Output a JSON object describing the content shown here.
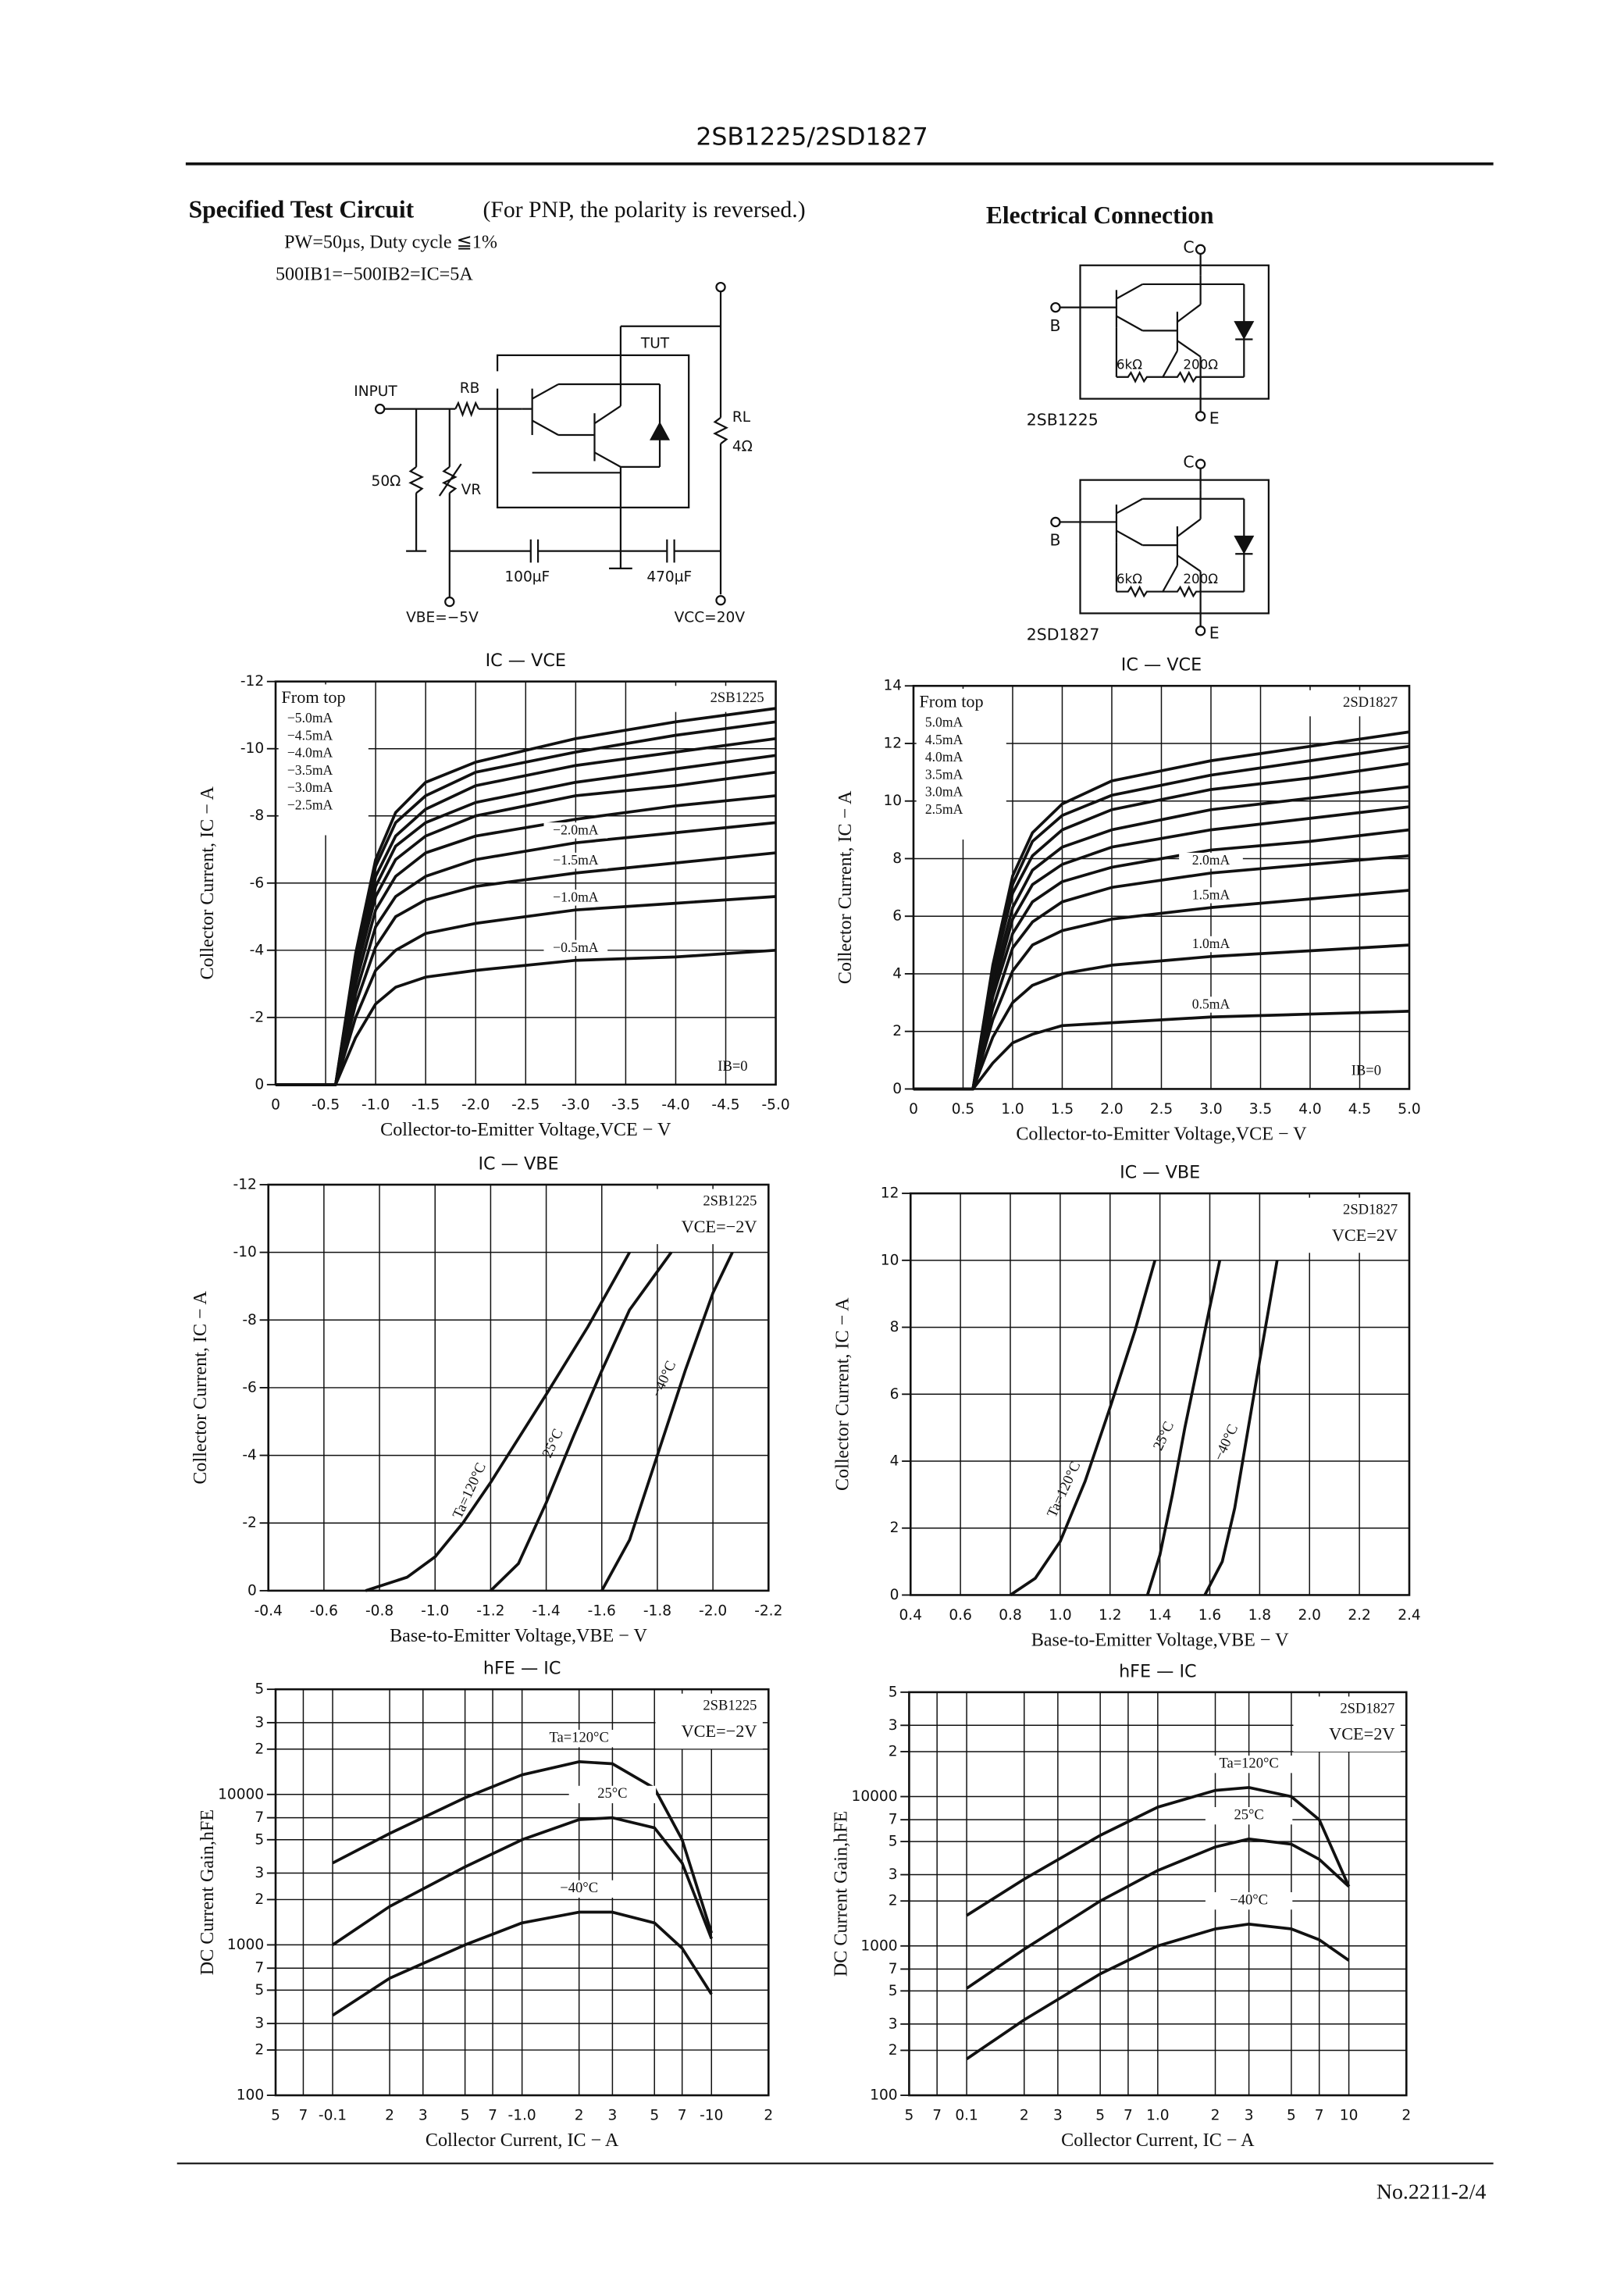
{
  "header": {
    "title": "2SB1225/2SD1827"
  },
  "test_circuit": {
    "title": "Specified Test Circuit",
    "note": "(For PNP, the polarity is reversed.)",
    "conditions": [
      "PW=50µs, Duty cycle ≦1%",
      "500IB1=−500IB2=IC=5A"
    ],
    "labels": {
      "input": "INPUT",
      "rb": "RB",
      "r50": "50Ω",
      "vr": "VR",
      "tut": "TUT",
      "rl": "RL",
      "rl_value": "4Ω",
      "c1": "100µF",
      "c2": "470µF",
      "vbe": "VBE=−5V",
      "vcc": "VCC=20V"
    }
  },
  "electrical_connection": {
    "title": "Electrical Connection",
    "diagrams": [
      {
        "part": "2SB1225",
        "c": "C",
        "b": "B",
        "e": "E",
        "r1": "6kΩ",
        "r2": "200Ω"
      },
      {
        "part": "2SD1827",
        "c": "C",
        "b": "B",
        "e": "E",
        "r1": "6kΩ",
        "r2": "200Ω"
      }
    ]
  },
  "chart_data": [
    {
      "type": "line",
      "title": "IC — VCE",
      "device": "2SB1225",
      "legend_title": "From top",
      "annotations": [
        "IB=0"
      ],
      "xlabel": "Collector-to-Emitter Voltage,VCE − V",
      "ylabel": "Collector Current, IC − A",
      "xlim": [
        0,
        -5
      ],
      "ylim": [
        0,
        -12
      ],
      "xticks": [
        0,
        -0.5,
        {
          "value": -1,
          "label": "-1.0"
        },
        -1.5,
        {
          "value": -2,
          "label": "-2.0"
        },
        -2.5,
        {
          "value": -3,
          "label": "-3.0"
        },
        -3.5,
        {
          "value": -4,
          "label": "-4.0"
        },
        -4.5,
        {
          "value": -5,
          "label": "-5.0"
        }
      ],
      "yticks": [
        0,
        -2,
        -4,
        -6,
        -8,
        -10,
        -12
      ],
      "grid": true,
      "x": [
        0,
        -0.6,
        -0.8,
        -1.0,
        -1.2,
        -1.5,
        -2.0,
        -3.0,
        -4.0,
        -5.0
      ],
      "series": [
        {
          "name": "−5.0mA",
          "color": "#111",
          "values": [
            0,
            0,
            -3.9,
            -6.7,
            -8.1,
            -9.0,
            -9.6,
            -10.3,
            -10.8,
            -11.2
          ]
        },
        {
          "name": "−4.5mA",
          "color": "#111",
          "values": [
            0,
            0,
            -3.8,
            -6.5,
            -7.8,
            -8.6,
            -9.3,
            -9.9,
            -10.4,
            -10.8
          ]
        },
        {
          "name": "−4.0mA",
          "color": "#111",
          "values": [
            0,
            0,
            -3.6,
            -6.2,
            -7.4,
            -8.2,
            -8.9,
            -9.5,
            -9.9,
            -10.3
          ]
        },
        {
          "name": "−3.5mA",
          "color": "#111",
          "values": [
            0,
            0,
            -3.4,
            -5.9,
            -7.1,
            -7.8,
            -8.4,
            -9.0,
            -9.4,
            -9.8
          ]
        },
        {
          "name": "−3.0mA",
          "color": "#111",
          "values": [
            0,
            0,
            -3.3,
            -5.6,
            -6.7,
            -7.4,
            -8.0,
            -8.6,
            -8.9,
            -9.3
          ]
        },
        {
          "name": "−2.5mA",
          "color": "#111",
          "values": [
            0,
            0,
            -3.0,
            -5.2,
            -6.2,
            -6.9,
            -7.4,
            -7.9,
            -8.3,
            -8.6
          ]
        },
        {
          "name": "−2.0mA",
          "color": "#111",
          "values": [
            0,
            0,
            -2.7,
            -4.7,
            -5.6,
            -6.2,
            -6.7,
            -7.2,
            -7.5,
            -7.8
          ]
        },
        {
          "name": "−1.5mA",
          "color": "#111",
          "values": [
            0,
            0,
            -2.4,
            -4.1,
            -5.0,
            -5.5,
            -5.9,
            -6.3,
            -6.6,
            -6.9
          ]
        },
        {
          "name": "−1.0mA",
          "color": "#111",
          "values": [
            0,
            0,
            -2.0,
            -3.4,
            -4.0,
            -4.5,
            -4.8,
            -5.2,
            -5.4,
            -5.6
          ]
        },
        {
          "name": "−0.5mA",
          "color": "#111",
          "values": [
            0,
            0,
            -1.4,
            -2.4,
            -2.9,
            -3.2,
            -3.4,
            -3.7,
            -3.8,
            -4.0
          ]
        }
      ]
    },
    {
      "type": "line",
      "title": "IC — VCE",
      "device": "2SD1827",
      "legend_title": "From top",
      "annotations": [
        "IB=0"
      ],
      "xlabel": "Collector-to-Emitter Voltage,VCE − V",
      "ylabel": "Collector Current, IC − A",
      "xlim": [
        0,
        5
      ],
      "ylim": [
        0,
        14
      ],
      "xticks": [
        0,
        0.5,
        {
          "value": 1,
          "label": "1.0"
        },
        1.5,
        {
          "value": 2,
          "label": "2.0"
        },
        2.5,
        {
          "value": 3,
          "label": "3.0"
        },
        3.5,
        {
          "value": 4,
          "label": "4.0"
        },
        4.5,
        {
          "value": 5,
          "label": "5.0"
        }
      ],
      "yticks": [
        0,
        2,
        4,
        6,
        8,
        10,
        12,
        14
      ],
      "grid": true,
      "x": [
        0,
        0.6,
        0.8,
        1.0,
        1.2,
        1.5,
        2.0,
        3.0,
        4.0,
        5.0
      ],
      "series": [
        {
          "name": "5.0mA",
          "color": "#111",
          "values": [
            0,
            0,
            4.3,
            7.4,
            8.9,
            9.9,
            10.7,
            11.4,
            11.9,
            12.4
          ]
        },
        {
          "name": "4.5mA",
          "color": "#111",
          "values": [
            0,
            0,
            4.2,
            7.1,
            8.6,
            9.5,
            10.2,
            10.9,
            11.4,
            11.9
          ]
        },
        {
          "name": "4.0mA",
          "color": "#111",
          "values": [
            0,
            0,
            4.0,
            6.8,
            8.1,
            9.0,
            9.7,
            10.4,
            10.8,
            11.3
          ]
        },
        {
          "name": "3.5mA",
          "color": "#111",
          "values": [
            0,
            0,
            3.7,
            6.3,
            7.6,
            8.4,
            9.0,
            9.7,
            10.1,
            10.5
          ]
        },
        {
          "name": "3.0mA",
          "color": "#111",
          "values": [
            0,
            0,
            3.4,
            5.9,
            7.1,
            7.8,
            8.4,
            9.0,
            9.4,
            9.8
          ]
        },
        {
          "name": "2.5mA",
          "color": "#111",
          "values": [
            0,
            0,
            3.2,
            5.4,
            6.5,
            7.2,
            7.7,
            8.3,
            8.6,
            9.0
          ]
        },
        {
          "name": "2.0mA",
          "color": "#111",
          "values": [
            0,
            0,
            2.8,
            4.9,
            5.8,
            6.5,
            7.0,
            7.5,
            7.8,
            8.1
          ]
        },
        {
          "name": "1.5mA",
          "color": "#111",
          "values": [
            0,
            0,
            2.4,
            4.1,
            5.0,
            5.5,
            5.9,
            6.3,
            6.6,
            6.9
          ]
        },
        {
          "name": "1.0mA",
          "color": "#111",
          "values": [
            0,
            0,
            1.8,
            3.0,
            3.6,
            4.0,
            4.3,
            4.6,
            4.8,
            5.0
          ]
        },
        {
          "name": "0.5mA",
          "color": "#111",
          "values": [
            0,
            0,
            0.9,
            1.6,
            1.9,
            2.2,
            2.3,
            2.5,
            2.6,
            2.7
          ]
        }
      ]
    },
    {
      "type": "line",
      "title": "IC — VBE",
      "device": "2SB1225",
      "condition": "VCE=−2V",
      "xlabel": "Base-to-Emitter Voltage,VBE − V",
      "ylabel": "Collector Current, IC − A",
      "xlim": [
        -0.4,
        -2.2
      ],
      "ylim": [
        0,
        -12
      ],
      "xticks": [
        -0.4,
        -0.6,
        -0.8,
        {
          "value": -1,
          "label": "-1.0"
        },
        -1.2,
        -1.4,
        -1.6,
        -1.8,
        {
          "value": -2,
          "label": "-2.0"
        },
        -2.2
      ],
      "yticks": [
        0,
        -2,
        -4,
        -6,
        -8,
        -10,
        -12
      ],
      "grid": true,
      "series": [
        {
          "name": "Ta=120°C",
          "color": "#111",
          "x": [
            -0.75,
            -0.9,
            -1.0,
            -1.1,
            -1.2,
            -1.4,
            -1.55,
            -1.7
          ],
          "values": [
            0,
            -0.4,
            -1.0,
            -2.0,
            -3.2,
            -5.8,
            -7.8,
            -10.0
          ]
        },
        {
          "name": "25°C",
          "color": "#111",
          "x": [
            -1.2,
            -1.3,
            -1.4,
            -1.5,
            -1.6,
            -1.7,
            -1.85
          ],
          "values": [
            0,
            -0.8,
            -2.6,
            -4.6,
            -6.5,
            -8.3,
            -10.0
          ]
        },
        {
          "name": "−40°C",
          "color": "#111",
          "x": [
            -1.6,
            -1.7,
            -1.8,
            -1.9,
            -2.0,
            -2.07
          ],
          "values": [
            0,
            -1.5,
            -4.0,
            -6.5,
            -8.8,
            -10.0
          ]
        }
      ]
    },
    {
      "type": "line",
      "title": "IC — VBE",
      "device": "2SD1827",
      "condition": "VCE=2V",
      "xlabel": "Base-to-Emitter Voltage,VBE − V",
      "ylabel": "Collector Current, IC − A",
      "xlim": [
        0.4,
        2.4
      ],
      "ylim": [
        0,
        12
      ],
      "xticks": [
        0.4,
        0.6,
        0.8,
        {
          "value": 1,
          "label": "1.0"
        },
        1.2,
        1.4,
        1.6,
        1.8,
        {
          "value": 2,
          "label": "2.0"
        },
        2.2,
        2.4
      ],
      "yticks": [
        0,
        2,
        4,
        6,
        8,
        10,
        12
      ],
      "grid": true,
      "series": [
        {
          "name": "Ta=120°C",
          "color": "#111",
          "x": [
            0.8,
            0.9,
            1.0,
            1.1,
            1.2,
            1.3,
            1.38
          ],
          "values": [
            0,
            0.5,
            1.6,
            3.4,
            5.6,
            7.9,
            10.0
          ]
        },
        {
          "name": "25°C",
          "color": "#111",
          "x": [
            1.35,
            1.4,
            1.45,
            1.5,
            1.55,
            1.6,
            1.64
          ],
          "values": [
            0,
            1.2,
            3.0,
            5.0,
            6.8,
            8.6,
            10.0
          ]
        },
        {
          "name": "−40°C",
          "color": "#111",
          "x": [
            1.58,
            1.65,
            1.7,
            1.75,
            1.8,
            1.87
          ],
          "values": [
            0,
            1.0,
            2.6,
            4.8,
            7.0,
            10.0
          ]
        }
      ]
    },
    {
      "type": "line",
      "title": "hFE — IC",
      "device": "2SB1225",
      "condition": "VCE=−2V",
      "xlabel": "Collector Current, IC − A",
      "ylabel": "DC Current Gain,hFE",
      "xscale": "log",
      "yscale": "log",
      "xlim": [
        -0.05,
        -20
      ],
      "ylim": [
        100,
        50000
      ],
      "xticks": [
        {
          "value": -0.05,
          "label": "5"
        },
        {
          "value": -0.07,
          "label": "7"
        },
        -0.1,
        {
          "value": -0.2,
          "label": "2"
        },
        {
          "value": -0.3,
          "label": "3"
        },
        {
          "value": -0.5,
          "label": "5"
        },
        {
          "value": -0.7,
          "label": "7"
        },
        {
          "value": -1,
          "label": "-1.0"
        },
        {
          "value": -2,
          "label": "2"
        },
        {
          "value": -3,
          "label": "3"
        },
        {
          "value": -5,
          "label": "5"
        },
        {
          "value": -7,
          "label": "7"
        },
        -10,
        {
          "value": -20,
          "label": "2"
        }
      ],
      "yticks": [
        {
          "value": 50000,
          "label": "5"
        },
        {
          "value": 30000,
          "label": "3"
        },
        {
          "value": 20000,
          "label": "2"
        },
        10000,
        {
          "value": 7000,
          "label": "7"
        },
        {
          "value": 5000,
          "label": "5"
        },
        {
          "value": 3000,
          "label": "3"
        },
        {
          "value": 2000,
          "label": "2"
        },
        1000,
        {
          "value": 700,
          "label": "7"
        },
        {
          "value": 500,
          "label": "5"
        },
        {
          "value": 300,
          "label": "3"
        },
        {
          "value": 200,
          "label": "2"
        },
        100
      ],
      "grid": true,
      "x": [
        -0.1,
        -0.2,
        -0.5,
        -1.0,
        -2.0,
        -3.0,
        -5.0,
        -7.0,
        -10
      ],
      "series": [
        {
          "name": "Ta=120°C",
          "color": "#111",
          "values": [
            3500,
            5500,
            9500,
            13500,
            16500,
            16000,
            11000,
            5000,
            1200
          ]
        },
        {
          "name": "25°C",
          "color": "#111",
          "values": [
            1000,
            1800,
            3300,
            5000,
            6800,
            7000,
            6000,
            3500,
            1100
          ]
        },
        {
          "name": "−40°C",
          "color": "#111",
          "values": [
            340,
            600,
            1000,
            1400,
            1650,
            1650,
            1400,
            950,
            470
          ]
        }
      ]
    },
    {
      "type": "line",
      "title": "hFE — IC",
      "device": "2SD1827",
      "condition": "VCE=2V",
      "xlabel": "Collector Current, IC − A",
      "ylabel": "DC Current Gain,hFE",
      "xscale": "log",
      "yscale": "log",
      "xlim": [
        0.05,
        20
      ],
      "ylim": [
        100,
        50000
      ],
      "xticks": [
        {
          "value": 0.05,
          "label": "5"
        },
        {
          "value": 0.07,
          "label": "7"
        },
        0.1,
        {
          "value": 0.2,
          "label": "2"
        },
        {
          "value": 0.3,
          "label": "3"
        },
        {
          "value": 0.5,
          "label": "5"
        },
        {
          "value": 0.7,
          "label": "7"
        },
        {
          "value": 1,
          "label": "1.0"
        },
        {
          "value": 2,
          "label": "2"
        },
        {
          "value": 3,
          "label": "3"
        },
        {
          "value": 5,
          "label": "5"
        },
        {
          "value": 7,
          "label": "7"
        },
        10,
        {
          "value": 20,
          "label": "2"
        }
      ],
      "yticks": [
        {
          "value": 50000,
          "label": "5"
        },
        {
          "value": 30000,
          "label": "3"
        },
        {
          "value": 20000,
          "label": "2"
        },
        10000,
        {
          "value": 7000,
          "label": "7"
        },
        {
          "value": 5000,
          "label": "5"
        },
        {
          "value": 3000,
          "label": "3"
        },
        {
          "value": 2000,
          "label": "2"
        },
        1000,
        {
          "value": 700,
          "label": "7"
        },
        {
          "value": 500,
          "label": "5"
        },
        {
          "value": 300,
          "label": "3"
        },
        {
          "value": 200,
          "label": "2"
        },
        100
      ],
      "grid": true,
      "x": [
        0.1,
        0.2,
        0.5,
        1.0,
        2.0,
        3.0,
        5.0,
        7.0,
        10
      ],
      "series": [
        {
          "name": "Ta=120°C",
          "color": "#111",
          "values": [
            1600,
            2800,
            5500,
            8500,
            11000,
            11500,
            10000,
            7000,
            2500
          ]
        },
        {
          "name": "25°C",
          "color": "#111",
          "values": [
            520,
            950,
            2000,
            3200,
            4600,
            5200,
            4800,
            3800,
            2500
          ]
        },
        {
          "name": "−40°C",
          "color": "#111",
          "values": [
            175,
            320,
            650,
            1000,
            1300,
            1400,
            1300,
            1100,
            800
          ]
        }
      ]
    }
  ],
  "footer": {
    "page": "No.2211-2/4"
  }
}
